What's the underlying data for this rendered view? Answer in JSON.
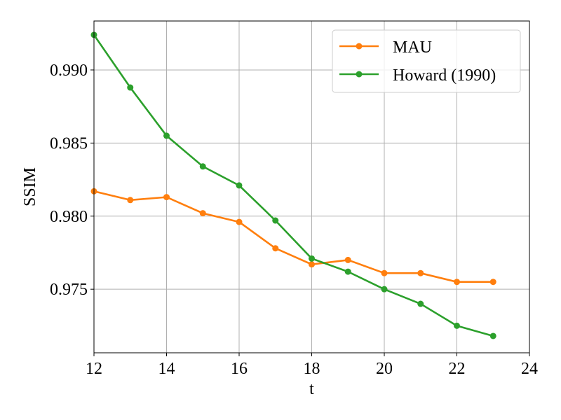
{
  "chart_data": {
    "type": "line",
    "title": "",
    "xlabel": "t",
    "ylabel": "SSIM",
    "xlim": [
      12,
      24
    ],
    "ylim": [
      0.97065,
      0.99335
    ],
    "xticks": [
      12,
      14,
      16,
      18,
      20,
      22,
      24
    ],
    "yticks": [
      0.975,
      0.98,
      0.985,
      0.99
    ],
    "ytick_labels": [
      "0.975",
      "0.980",
      "0.985",
      "0.990"
    ],
    "grid": true,
    "legend_position": "top-right",
    "x": [
      12,
      13,
      14,
      15,
      16,
      17,
      18,
      19,
      20,
      21,
      22,
      23
    ],
    "series": [
      {
        "name": "MAU",
        "color": "#ff7f0e",
        "values": [
          0.9817,
          0.9811,
          0.9813,
          0.9802,
          0.9796,
          0.9778,
          0.9767,
          0.977,
          0.9761,
          0.9761,
          0.9755,
          0.9755
        ]
      },
      {
        "name": "Howard (1990)",
        "color": "#2ca02c",
        "values": [
          0.9924,
          0.9888,
          0.9855,
          0.9834,
          0.9821,
          0.9797,
          0.9771,
          0.9762,
          0.975,
          0.974,
          0.9725,
          0.9718
        ]
      }
    ]
  }
}
